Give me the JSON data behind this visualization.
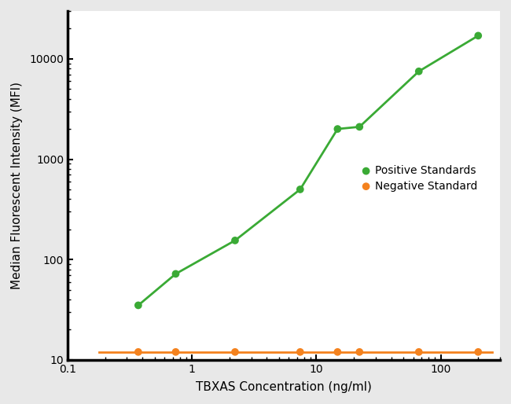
{
  "xlabel": "TBXAS Concentration (ng/ml)",
  "ylabel": "Median Fluorescent Intensity (MFI)",
  "xlim": [
    0.1,
    300
  ],
  "ylim": [
    10,
    30000
  ],
  "positive_x": [
    0.37,
    0.74,
    2.22,
    7.41,
    14.81,
    22.22,
    66.67,
    200.0
  ],
  "positive_y": [
    35,
    72,
    155,
    500,
    2000,
    2100,
    7500,
    17000
  ],
  "negative_x": [
    0.37,
    0.74,
    2.22,
    7.41,
    14.81,
    22.22,
    66.67,
    200.0
  ],
  "negative_y": [
    12,
    12,
    12,
    12,
    12,
    12,
    12,
    12
  ],
  "positive_color": "#3aaa35",
  "negative_color": "#f4821e",
  "line_color_positive": "#3aaa35",
  "line_color_negative": "#f4821e",
  "legend_positive": "Positive Standards",
  "legend_negative": "Negative Standard",
  "marker_size": 7,
  "line_width": 2.0,
  "background_color": "#e8e8e8",
  "plot_bg_color": "#ffffff"
}
